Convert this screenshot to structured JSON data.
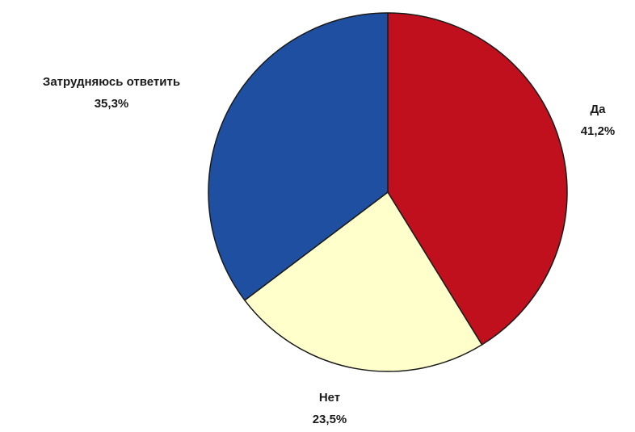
{
  "chart_data": {
    "type": "pie",
    "title": "",
    "categories": [
      "Да",
      "Нет",
      "Затрудняюсь ответить"
    ],
    "values": [
      41.2,
      23.5,
      35.3
    ],
    "value_labels": [
      "41,2%",
      "23,5%",
      "35,3%"
    ],
    "colors": [
      "#c0101e",
      "#ffffcc",
      "#1f4fa0"
    ],
    "start_angle": "12 o'clock",
    "direction": "clockwise",
    "legend": "none",
    "slice_labels": "outside"
  }
}
